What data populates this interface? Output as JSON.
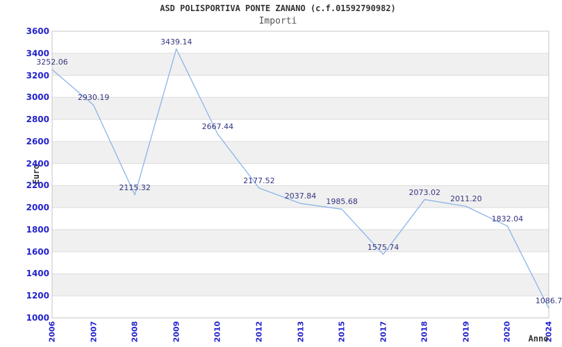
{
  "chart_data": {
    "type": "line",
    "title": "ASD POLISPORTIVA PONTE ZANANO (c.f.01592790982)",
    "subtitle": "Importi",
    "xlabel": "Anno",
    "ylabel": "Euro",
    "categories": [
      "2006",
      "2007",
      "2008",
      "2009",
      "2010",
      "2012",
      "2013",
      "2015",
      "2017",
      "2018",
      "2019",
      "2020",
      "2024"
    ],
    "values": [
      3252.06,
      2930.19,
      2115.32,
      3439.14,
      2667.44,
      2177.52,
      2037.84,
      1985.68,
      1575.74,
      2073.02,
      2011.2,
      1832.04,
      1086.7
    ],
    "point_labels": [
      "3252.06",
      "2930.19",
      "2115.32",
      "3439.14",
      "2667.44",
      "2177.52",
      "2037.84",
      "1985.68",
      "1575.74",
      "2073.02",
      "2011.20",
      "1832.04",
      "1086.7"
    ],
    "ylim": [
      1000,
      3600
    ],
    "ytick_step": 200,
    "grid": true,
    "legend": "none",
    "colors": {
      "line": "#8ab4e8",
      "point_label": "#333380",
      "tick_label": "#2323cc",
      "band_even": "#ffffff",
      "band_odd": "#f0f0f0",
      "grid_line": "#dddddd",
      "plot_border": "#c4c4c4",
      "title": "#333333",
      "subtitle": "#555555",
      "axis_label": "#333333"
    }
  }
}
